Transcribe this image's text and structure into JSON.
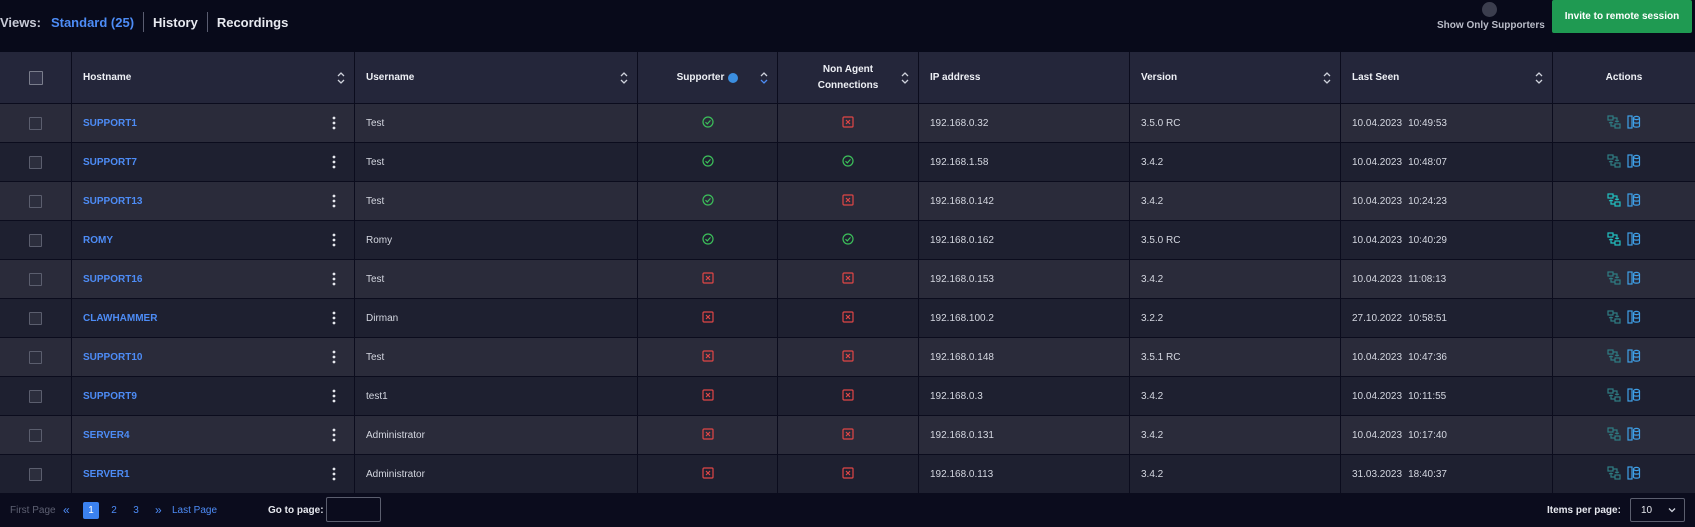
{
  "views": {
    "label": "Views:",
    "options": [
      {
        "label": "Standard (25)",
        "active": true
      },
      {
        "label": "History",
        "active": false
      },
      {
        "label": "Recordings",
        "active": false
      }
    ]
  },
  "toggle": {
    "label": "Show Only Supporters",
    "on": false
  },
  "invite_button": "Invite to remote session",
  "columns": {
    "hostname": "Hostname",
    "username": "Username",
    "supporter": "Supporter",
    "non_agent_line1": "Non Agent",
    "non_agent_line2": "Connections",
    "ip": "IP address",
    "version": "Version",
    "last_seen": "Last Seen",
    "actions": "Actions"
  },
  "rows": [
    {
      "hostname": "SUPPORT1",
      "username": "Test",
      "supporter": true,
      "non_agent": false,
      "ip": "192.168.0.32",
      "version": "3.5.0 RC",
      "date": "10.04.2023",
      "time": "10:49:53",
      "active": false
    },
    {
      "hostname": "SUPPORT7",
      "username": "Test",
      "supporter": true,
      "non_agent": true,
      "ip": "192.168.1.58",
      "version": "3.4.2",
      "date": "10.04.2023",
      "time": "10:48:07",
      "active": false
    },
    {
      "hostname": "SUPPORT13",
      "username": "Test",
      "supporter": true,
      "non_agent": false,
      "ip": "192.168.0.142",
      "version": "3.4.2",
      "date": "10.04.2023",
      "time": "10:24:23",
      "active": true
    },
    {
      "hostname": "ROMY",
      "username": "Romy",
      "supporter": true,
      "non_agent": true,
      "ip": "192.168.0.162",
      "version": "3.5.0 RC",
      "date": "10.04.2023",
      "time": "10:40:29",
      "active": true
    },
    {
      "hostname": "SUPPORT16",
      "username": "Test",
      "supporter": false,
      "non_agent": false,
      "ip": "192.168.0.153",
      "version": "3.4.2",
      "date": "10.04.2023",
      "time": "11:08:13",
      "active": false
    },
    {
      "hostname": "CLAWHAMMER",
      "username": "Dirman",
      "supporter": false,
      "non_agent": false,
      "ip": "192.168.100.2",
      "version": "3.2.2",
      "date": "27.10.2022",
      "time": "10:58:51",
      "active": false
    },
    {
      "hostname": "SUPPORT10",
      "username": "Test",
      "supporter": false,
      "non_agent": false,
      "ip": "192.168.0.148",
      "version": "3.5.1 RC",
      "date": "10.04.2023",
      "time": "10:47:36",
      "active": false
    },
    {
      "hostname": "SUPPORT9",
      "username": "test1",
      "supporter": false,
      "non_agent": false,
      "ip": "192.168.0.3",
      "version": "3.4.2",
      "date": "10.04.2023",
      "time": "10:11:55",
      "active": false
    },
    {
      "hostname": "SERVER4",
      "username": "Administrator",
      "supporter": false,
      "non_agent": false,
      "ip": "192.168.0.131",
      "version": "3.4.2",
      "date": "10.04.2023",
      "time": "10:17:40",
      "active": false
    },
    {
      "hostname": "SERVER1",
      "username": "Administrator",
      "supporter": false,
      "non_agent": false,
      "ip": "192.168.0.113",
      "version": "3.4.2",
      "date": "31.03.2023",
      "time": "18:40:37",
      "active": false
    }
  ],
  "pagination": {
    "first": "First Page",
    "last": "Last Page",
    "pages": [
      "1",
      "2",
      "3"
    ],
    "current": "1",
    "goto_label": "Go to page:",
    "goto_value": "",
    "items_label": "Items per page:",
    "items_value": "10"
  },
  "colors": {
    "accent": "#4d8cf6",
    "ok": "#3cbf5a",
    "fail": "#e04646",
    "invite": "#1f9a52",
    "action_active": "#22c2c2",
    "action_dim": "#2f7d83"
  },
  "icons": {
    "ok": "check-circle-icon",
    "fail": "x-square-icon",
    "action_connect": "remote-connect-icon",
    "action_details": "database-icon"
  }
}
